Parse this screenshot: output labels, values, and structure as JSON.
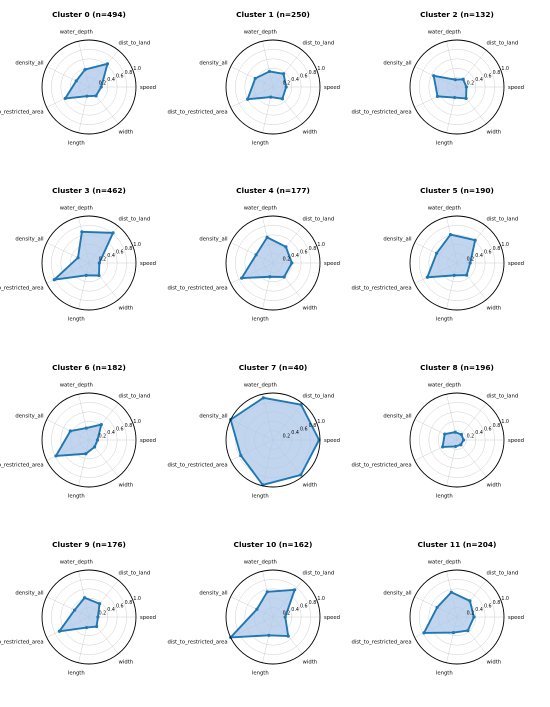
{
  "axes": [
    "speed",
    "dist_to_land",
    "water_depth",
    "density_all",
    "dist_to_restricted_area",
    "length",
    "width"
  ],
  "rticks": [
    "0.2",
    "0.4",
    "0.6",
    "0.8",
    "1.0"
  ],
  "style": {
    "line_color": "#1f77b4",
    "fill_color": "#aec7e8",
    "grid_color": "#c8c8c8"
  },
  "chart_data": [
    {
      "type": "radar",
      "title": "Cluster 0 (n=494)",
      "rlim": [
        0,
        1
      ],
      "grid": true,
      "values": [
        0.26,
        0.63,
        0.38,
        0.3,
        0.56,
        0.2,
        0.24
      ]
    },
    {
      "type": "radar",
      "title": "Cluster 1 (n=250)",
      "rlim": [
        0,
        1
      ],
      "grid": true,
      "values": [
        0.28,
        0.36,
        0.34,
        0.42,
        0.6,
        0.22,
        0.32
      ]
    },
    {
      "type": "radar",
      "title": "Cluster 2 (n=132)",
      "rlim": [
        0,
        1
      ],
      "grid": true,
      "values": [
        0.2,
        0.21,
        0.16,
        0.55,
        0.46,
        0.23,
        0.31
      ]
    },
    {
      "type": "radar",
      "title": "Cluster 3 (n=462)",
      "rlim": [
        0,
        1
      ],
      "grid": true,
      "values": [
        0.22,
        0.82,
        0.68,
        0.26,
        0.82,
        0.27,
        0.34
      ]
    },
    {
      "type": "radar",
      "title": "Cluster 4 (n=177)",
      "rlim": [
        0,
        1
      ],
      "grid": true,
      "values": [
        0.4,
        0.44,
        0.56,
        0.4,
        0.74,
        0.3,
        0.38
      ]
    },
    {
      "type": "radar",
      "title": "Cluster 5 (n=190)",
      "rlim": [
        0,
        1
      ],
      "grid": true,
      "values": [
        0.28,
        0.62,
        0.62,
        0.48,
        0.7,
        0.27,
        0.33
      ]
    },
    {
      "type": "radar",
      "title": "Cluster 6 (n=182)",
      "rlim": [
        0,
        1
      ],
      "grid": true,
      "values": [
        0.18,
        0.42,
        0.26,
        0.44,
        0.78,
        0.3,
        0.19
      ]
    },
    {
      "type": "radar",
      "title": "Cluster 7 (n=40)",
      "rlim": [
        0,
        1
      ],
      "grid": true,
      "values": [
        0.98,
        0.96,
        0.92,
        1.0,
        0.76,
        0.98,
        0.95
      ]
    },
    {
      "type": "radar",
      "title": "Cluster 8 (n=196)",
      "rlim": [
        0,
        1
      ],
      "grid": true,
      "values": [
        0.14,
        0.15,
        0.17,
        0.29,
        0.34,
        0.14,
        0.13
      ]
    },
    {
      "type": "radar",
      "title": "Cluster 9 (n=176)",
      "rlim": [
        0,
        1
      ],
      "grid": true,
      "values": [
        0.19,
        0.36,
        0.42,
        0.34,
        0.7,
        0.23,
        0.26
      ]
    },
    {
      "type": "radar",
      "title": "Cluster 10 (n=162)",
      "rlim": [
        0,
        1
      ],
      "grid": true,
      "values": [
        0.26,
        0.74,
        0.55,
        0.38,
        1.0,
        0.4,
        0.52
      ]
    },
    {
      "type": "radar",
      "title": "Cluster 11 (n=204)",
      "rlim": [
        0,
        1
      ],
      "grid": true,
      "values": [
        0.36,
        0.44,
        0.54,
        0.47,
        0.78,
        0.34,
        0.37
      ]
    }
  ]
}
